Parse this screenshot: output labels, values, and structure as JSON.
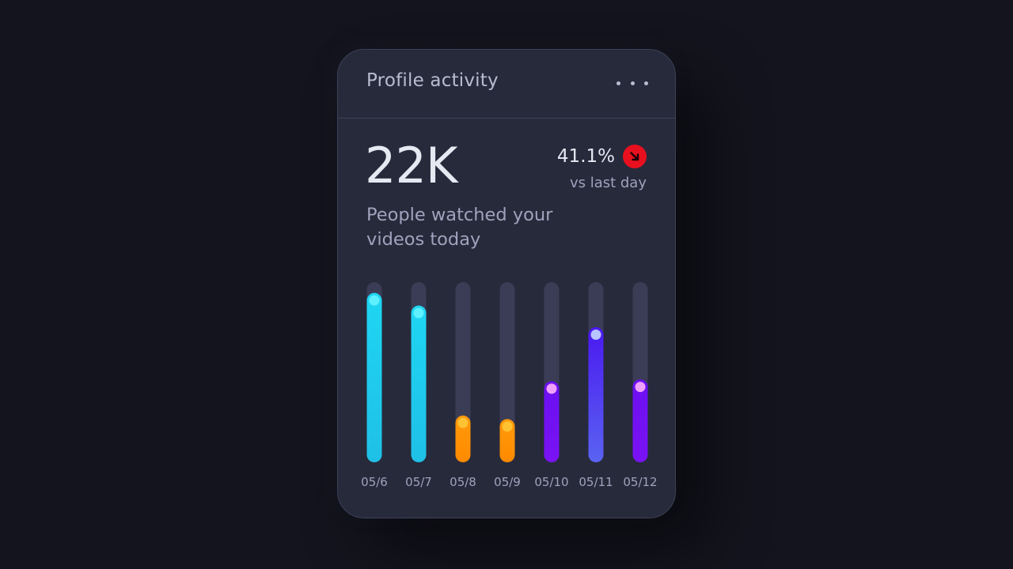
{
  "card": {
    "title": "Profile activity",
    "more_icon": "more-horizontal-icon",
    "big_number": "22K",
    "subtitle": "People watched your videos today",
    "change_percent": "41.1%",
    "change_caption": "vs last day",
    "trend_icon": "arrow-down-right-icon",
    "trend_color": "#e8101e"
  },
  "chart_data": {
    "type": "bar",
    "categories": [
      "05/6",
      "05/7",
      "05/8",
      "05/9",
      "05/10",
      "05/11",
      "05/12"
    ],
    "values": [
      0.94,
      0.87,
      0.26,
      0.24,
      0.45,
      0.75,
      0.46
    ],
    "ylim": [
      0,
      1
    ],
    "grid": false,
    "bar_styles": [
      {
        "top": "#1fd6f2",
        "bottom": "#1fc0e6",
        "knob": "#5ff0ff"
      },
      {
        "top": "#1fd6f2",
        "bottom": "#1fc0e6",
        "knob": "#5ff0ff"
      },
      {
        "top": "#ff9a0a",
        "bottom": "#ff8a00",
        "knob": "#ffc233"
      },
      {
        "top": "#ff9a0a",
        "bottom": "#ff8a00",
        "knob": "#ffc233"
      },
      {
        "top": "#6b10f0",
        "bottom": "#7a12f5",
        "knob": "#f0a0ff"
      },
      {
        "top": "#4a18f0",
        "bottom": "#5a63f2",
        "knob": "#b9c5ff"
      },
      {
        "top": "#6b10f0",
        "bottom": "#7a12f5",
        "knob": "#f0a0ff"
      }
    ],
    "track_color": "#3a3d55"
  }
}
